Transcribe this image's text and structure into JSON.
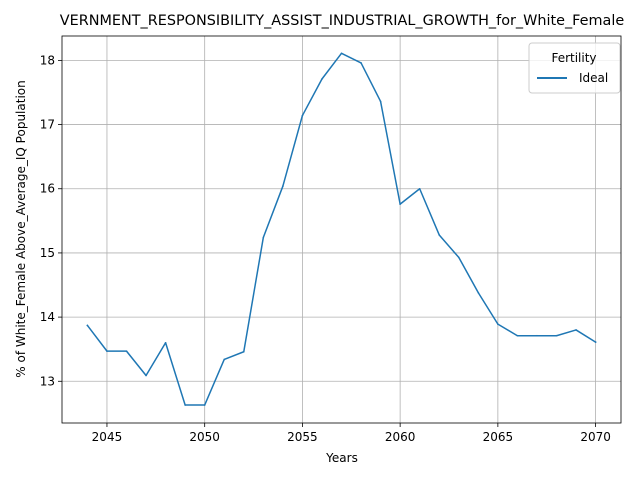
{
  "chart_data": {
    "type": "line",
    "title": "VERNMENT_RESPONSIBILITY_ASSIST_INDUSTRIAL_GROWTH_for_White_Female",
    "xlabel": "Years",
    "ylabel": "% of White_Female Above_Average_IQ Population",
    "xlim": [
      2042.7,
      2071.3
    ],
    "ylim": [
      12.35,
      18.38
    ],
    "xticks": [
      2045,
      2050,
      2055,
      2060,
      2065,
      2070
    ],
    "yticks": [
      13,
      14,
      15,
      16,
      17,
      18
    ],
    "grid": true,
    "legend": {
      "title": "Fertility",
      "placement": "top-right"
    },
    "series": [
      {
        "name": "Ideal",
        "color": "#1f77b4",
        "x": [
          2044,
          2045,
          2046,
          2047,
          2048,
          2049,
          2050,
          2051,
          2052,
          2053,
          2054,
          2055,
          2056,
          2057,
          2058,
          2059,
          2060,
          2061,
          2062,
          2063,
          2064,
          2065,
          2066,
          2067,
          2068,
          2069,
          2070
        ],
        "y": [
          13.87,
          13.47,
          13.47,
          13.09,
          13.6,
          12.63,
          12.63,
          13.34,
          13.46,
          15.24,
          16.04,
          17.14,
          17.71,
          18.11,
          17.96,
          17.36,
          15.76,
          16.0,
          15.28,
          14.93,
          14.38,
          13.89,
          13.71,
          13.71,
          13.71,
          13.8,
          13.61
        ]
      }
    ]
  }
}
